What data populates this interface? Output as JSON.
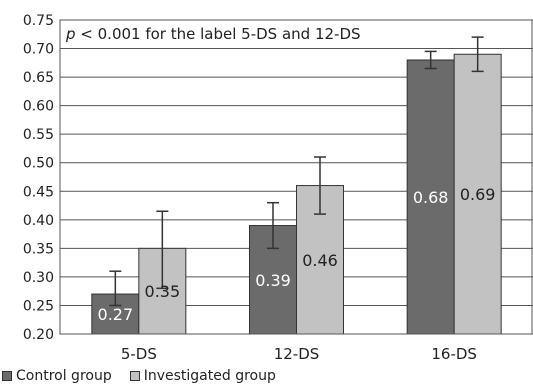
{
  "chart_data": {
    "type": "bar",
    "categories": [
      "5-DS",
      "12-DS",
      "16-DS"
    ],
    "series": [
      {
        "name": "Control group",
        "values": [
          0.27,
          0.39,
          0.68
        ],
        "err_low": [
          0.25,
          0.35,
          0.665
        ],
        "err_high": [
          0.31,
          0.43,
          0.695
        ],
        "color": "#6b6b6b",
        "label_color": "#ffffff"
      },
      {
        "name": "Investigated group",
        "values": [
          0.35,
          0.46,
          0.69
        ],
        "err_low": [
          0.28,
          0.41,
          0.66
        ],
        "err_high": [
          0.415,
          0.51,
          0.72
        ],
        "color": "#c2c2c2",
        "label_color": "#222222"
      }
    ],
    "value_labels": [
      [
        "0.27",
        "0.39",
        "0.68"
      ],
      [
        "0.35",
        "0.46",
        "0.69"
      ]
    ],
    "ylim": [
      0.2,
      0.75
    ],
    "yticks": [
      "0.20",
      "0.25",
      "0.30",
      "0.35",
      "0.40",
      "0.45",
      "0.50",
      "0.55",
      "0.60",
      "0.65",
      "0.70",
      "0.75"
    ],
    "grid": true,
    "legend_position": "bottom-left",
    "annotation": {
      "italic": "p",
      "text": " < 0.001 for the label 5-DS and 12-DS"
    },
    "xlabel": "",
    "ylabel": ""
  }
}
